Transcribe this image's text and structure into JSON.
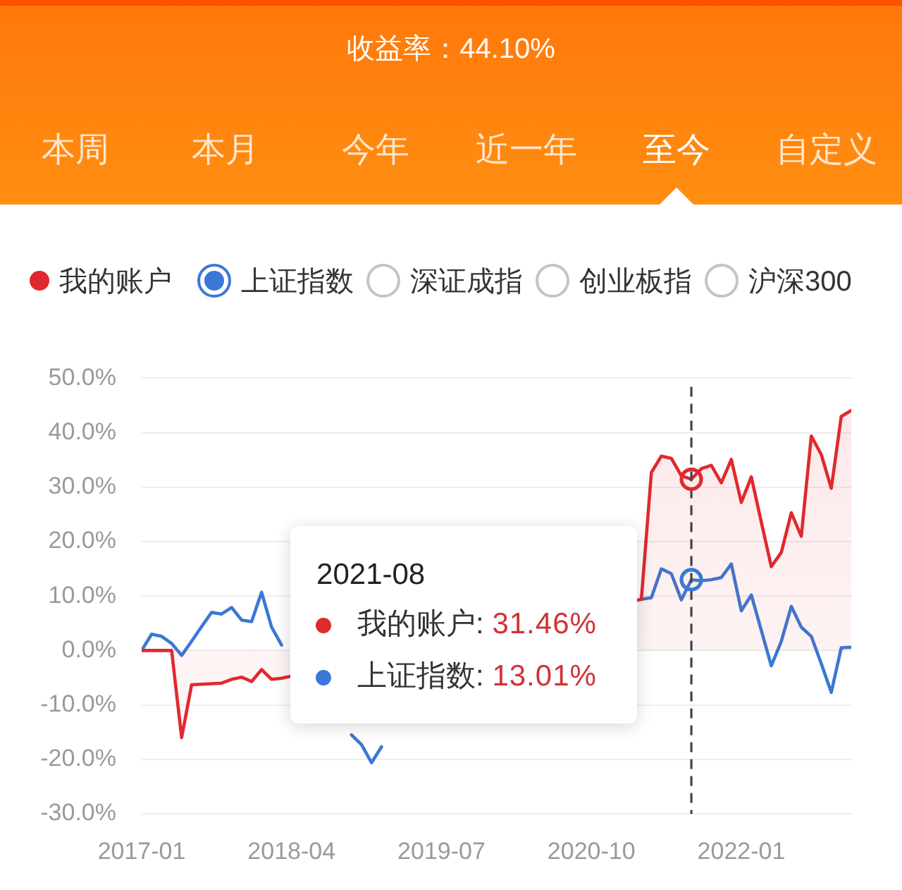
{
  "chart_data": {
    "type": "line",
    "title": "收益率：44.10%",
    "x": [
      "2017-01",
      "2017-02",
      "2017-03",
      "2017-04",
      "2017-05",
      "2017-06",
      "2017-07",
      "2017-08",
      "2017-09",
      "2017-10",
      "2017-11",
      "2017-12",
      "2018-01",
      "2018-02",
      "2018-03",
      "2018-04",
      "2018-05",
      "2018-06",
      "2018-07",
      "2018-08",
      "2018-09",
      "2018-10",
      "2018-11",
      "2018-12",
      "2019-01",
      "2019-02",
      "2019-03",
      "2019-04",
      "2019-05",
      "2019-06",
      "2019-07",
      "2019-08",
      "2019-09",
      "2019-10",
      "2019-11",
      "2019-12",
      "2020-01",
      "2020-02",
      "2020-03",
      "2020-04",
      "2020-05",
      "2020-06",
      "2020-07",
      "2020-08",
      "2020-09",
      "2020-10",
      "2020-11",
      "2020-12",
      "2021-01",
      "2021-02",
      "2021-03",
      "2021-04",
      "2021-05",
      "2021-06",
      "2021-07",
      "2021-08",
      "2021-09",
      "2021-10",
      "2021-11",
      "2021-12",
      "2022-01",
      "2022-02",
      "2022-03",
      "2022-04",
      "2022-05",
      "2022-06",
      "2022-07",
      "2022-08",
      "2022-09",
      "2022-10",
      "2022-11",
      "2022-12"
    ],
    "xlim": [
      "2017-01",
      "2022-12"
    ],
    "xticks": [
      "2017-01",
      "2018-04",
      "2019-07",
      "2020-10",
      "2022-01"
    ],
    "ylim": [
      -30,
      50
    ],
    "yticks": [
      {
        "value": -30,
        "label": "-30.0%"
      },
      {
        "value": -20,
        "label": "-20.0%"
      },
      {
        "value": -10,
        "label": "-10.0%"
      },
      {
        "value": 0,
        "label": "0.0%"
      },
      {
        "value": 10,
        "label": "10.0%"
      },
      {
        "value": 20,
        "label": "20.0%"
      },
      {
        "value": 30,
        "label": "30.0%"
      },
      {
        "value": 40,
        "label": "40.0%"
      },
      {
        "value": 50,
        "label": "50.0%"
      }
    ],
    "series": [
      {
        "name": "我的账户",
        "type": "area",
        "color": "#e0292f",
        "values": [
          0,
          0,
          0,
          0,
          -16.0,
          -6.3,
          -6.2,
          -6.1,
          -6.0,
          -5.3,
          -4.9,
          -5.7,
          -3.5,
          -5.3,
          -5.1,
          null,
          null,
          null,
          null,
          null,
          null,
          null,
          null,
          null,
          null,
          null,
          null,
          null,
          null,
          null,
          null,
          null,
          null,
          null,
          null,
          null,
          null,
          null,
          null,
          null,
          null,
          null,
          null,
          null,
          null,
          null,
          null,
          null,
          null,
          null,
          9.4,
          32.7,
          35.7,
          35.3,
          32.1,
          31.46,
          33.4,
          34.0,
          30.8,
          35.1,
          27.2,
          31.9,
          23.6,
          15.4,
          18.0,
          25.3,
          21.0,
          39.4,
          36.0,
          29.8,
          43.0,
          44.1
        ]
      },
      {
        "name": "上证指数",
        "color": "#3a78d6",
        "values": [
          0,
          3.0,
          2.6,
          1.3,
          -0.9,
          1.7,
          4.4,
          7.0,
          6.7,
          7.9,
          5.6,
          5.3,
          10.7,
          4.3,
          1.0,
          null,
          null,
          null,
          null,
          null,
          null,
          -15.5,
          -17.3,
          -20.6,
          -17.7,
          null,
          null,
          null,
          null,
          null,
          null,
          null,
          null,
          null,
          null,
          null,
          null,
          null,
          null,
          null,
          null,
          null,
          null,
          null,
          null,
          null,
          null,
          null,
          null,
          null,
          9.4,
          9.7,
          15.0,
          14.1,
          9.3,
          13.01,
          12.8,
          13.0,
          13.4,
          15.9,
          7.3,
          10.2,
          3.7,
          -2.8,
          1.7,
          8.1,
          4.3,
          2.6,
          -2.4,
          -7.7,
          0.5,
          0.6
        ]
      }
    ],
    "ref_lines": [
      {
        "axis": "x",
        "value": "2021-08",
        "color": "#444444",
        "line_style": "dashed"
      }
    ],
    "annotations": [
      "本周",
      "本月",
      "今年",
      "近一年",
      "至今",
      "自定义",
      "深证成指",
      "创业板指",
      "沪深300",
      "2021-08",
      "我的账户: 31.46%",
      "上证指数: 13.01%"
    ],
    "grid": "y",
    "legend": "top",
    "marker": "none",
    "line_style": "solid"
  }
}
